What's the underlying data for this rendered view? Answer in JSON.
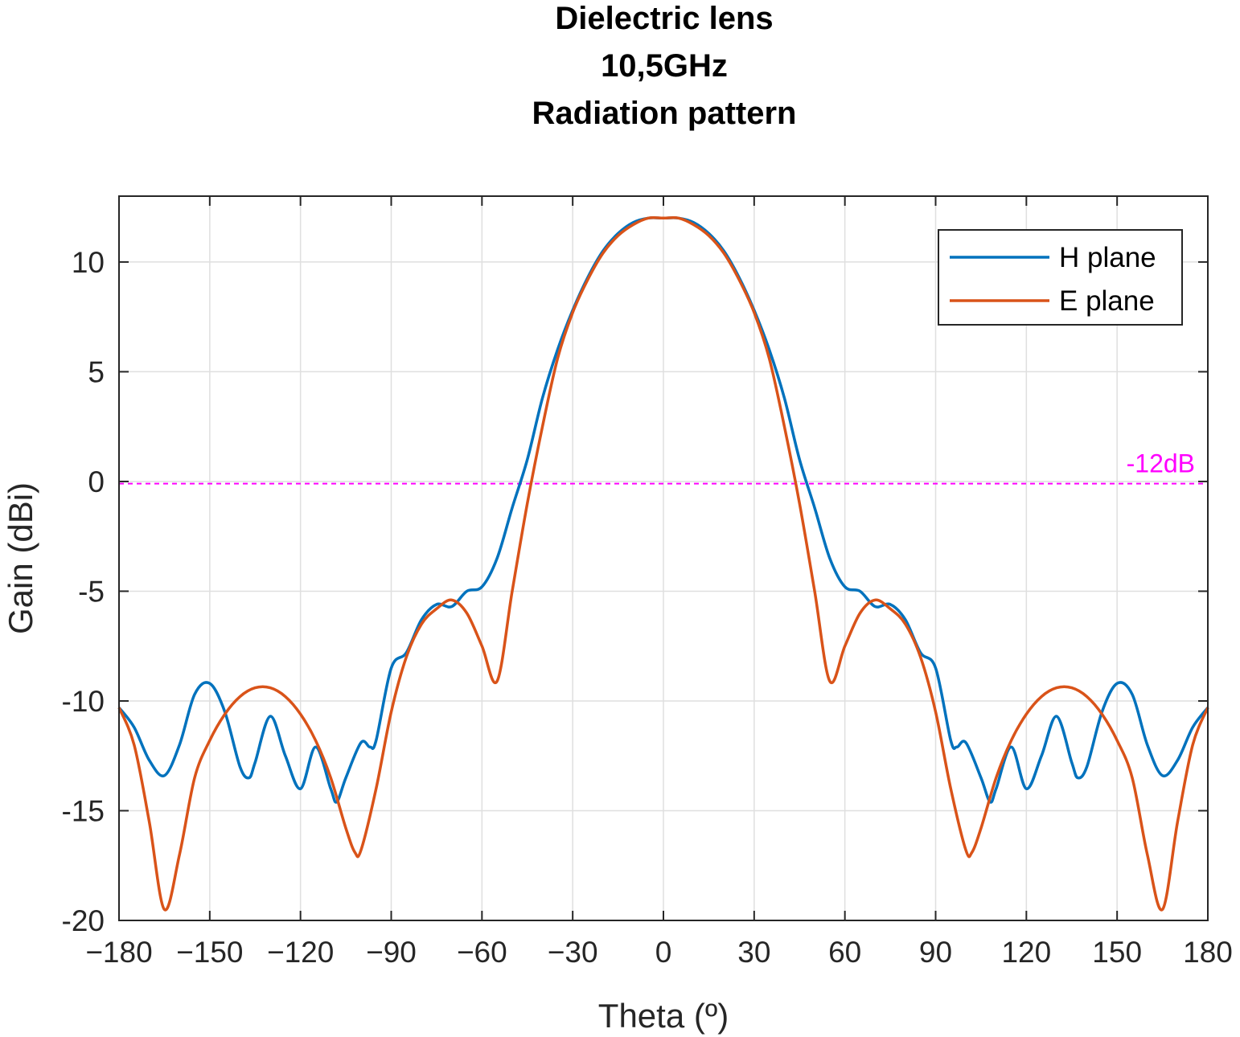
{
  "chart_data": {
    "type": "line",
    "title": [
      "Dielectric lens",
      "10,5GHz",
      "Radiation pattern"
    ],
    "xlabel": "Theta (º)",
    "ylabel": "Gain (dBi)",
    "xlim": [
      -180,
      180
    ],
    "ylim": [
      -20,
      13
    ],
    "xticks": [
      -180,
      -150,
      -120,
      -90,
      -60,
      -30,
      0,
      30,
      60,
      90,
      120,
      150,
      180
    ],
    "yticks": [
      -20,
      -15,
      -10,
      -5,
      0,
      5,
      10
    ],
    "grid": true,
    "legend_position": "top-right",
    "reference_line": {
      "y": -0.1,
      "label": "-12dB",
      "color": "#ff00ff",
      "style": "dashed"
    },
    "series": [
      {
        "name": "H plane",
        "color": "#0072bd",
        "x": [
          -180,
          -175,
          -170,
          -165,
          -160,
          -155,
          -150,
          -145,
          -140,
          -137,
          -135,
          -130,
          -125,
          -120,
          -115,
          -110,
          -108,
          -105,
          -100,
          -97,
          -95,
          -90,
          -85,
          -80,
          -75,
          -70,
          -65,
          -60,
          -55,
          -50,
          -45,
          -40,
          -35,
          -30,
          -25,
          -20,
          -15,
          -10,
          -5,
          0,
          5,
          10,
          15,
          20,
          25,
          30,
          35,
          40,
          45,
          50,
          55,
          60,
          65,
          70,
          75,
          80,
          85,
          90,
          95,
          97,
          100,
          105,
          108,
          110,
          115,
          120,
          125,
          130,
          135,
          137,
          140,
          145,
          150,
          155,
          160,
          165,
          170,
          175,
          180
        ],
        "y": [
          -10.3,
          -11.2,
          -12.7,
          -13.4,
          -12.0,
          -9.7,
          -9.2,
          -10.5,
          -13.0,
          -13.5,
          -12.8,
          -10.7,
          -12.5,
          -14.0,
          -12.1,
          -14.0,
          -14.6,
          -13.5,
          -11.9,
          -12.1,
          -11.8,
          -8.5,
          -7.8,
          -6.3,
          -5.6,
          -5.7,
          -5.0,
          -4.8,
          -3.5,
          -1.2,
          1.0,
          3.8,
          6.0,
          7.8,
          9.3,
          10.5,
          11.3,
          11.8,
          12.0,
          12.0,
          12.0,
          11.8,
          11.3,
          10.5,
          9.3,
          7.8,
          6.0,
          3.8,
          1.0,
          -1.2,
          -3.5,
          -4.8,
          -5.0,
          -5.7,
          -5.6,
          -6.3,
          -7.8,
          -8.5,
          -11.8,
          -12.1,
          -11.9,
          -13.5,
          -14.6,
          -14.0,
          -12.1,
          -14.0,
          -12.5,
          -10.7,
          -12.8,
          -13.5,
          -13.0,
          -10.5,
          -9.2,
          -9.7,
          -12.0,
          -13.4,
          -12.7,
          -11.2,
          -10.3
        ]
      },
      {
        "name": "E plane",
        "color": "#d95319",
        "x": [
          -180,
          -175,
          -170,
          -165,
          -160,
          -155,
          -150,
          -145,
          -140,
          -135,
          -130,
          -125,
          -120,
          -115,
          -110,
          -105,
          -102,
          -100,
          -95,
          -90,
          -85,
          -80,
          -75,
          -70,
          -65,
          -60,
          -55,
          -50,
          -45,
          -40,
          -35,
          -30,
          -25,
          -20,
          -15,
          -10,
          -5,
          0,
          5,
          10,
          15,
          20,
          25,
          30,
          35,
          40,
          45,
          50,
          55,
          60,
          65,
          70,
          75,
          80,
          85,
          90,
          95,
          100,
          102,
          105,
          110,
          115,
          120,
          125,
          130,
          135,
          140,
          145,
          150,
          155,
          160,
          165,
          170,
          175,
          180
        ],
        "y": [
          -10.3,
          -12.0,
          -15.5,
          -19.5,
          -17.0,
          -13.5,
          -11.8,
          -10.6,
          -9.8,
          -9.4,
          -9.4,
          -9.8,
          -10.6,
          -11.8,
          -13.5,
          -15.8,
          -16.9,
          -16.8,
          -14.0,
          -10.5,
          -8.0,
          -6.5,
          -5.8,
          -5.4,
          -6.0,
          -7.5,
          -9.1,
          -5.0,
          -1.0,
          2.5,
          5.6,
          7.7,
          9.2,
          10.4,
          11.2,
          11.7,
          12.0,
          12.0,
          12.0,
          11.7,
          11.2,
          10.4,
          9.2,
          7.7,
          5.6,
          2.5,
          -1.0,
          -5.0,
          -9.1,
          -7.5,
          -6.0,
          -5.4,
          -5.8,
          -6.5,
          -8.0,
          -10.5,
          -14.0,
          -16.8,
          -16.9,
          -15.8,
          -13.5,
          -11.8,
          -10.6,
          -9.8,
          -9.4,
          -9.4,
          -9.8,
          -10.6,
          -11.8,
          -13.5,
          -17.0,
          -19.5,
          -15.5,
          -12.0,
          -10.3
        ]
      }
    ]
  }
}
